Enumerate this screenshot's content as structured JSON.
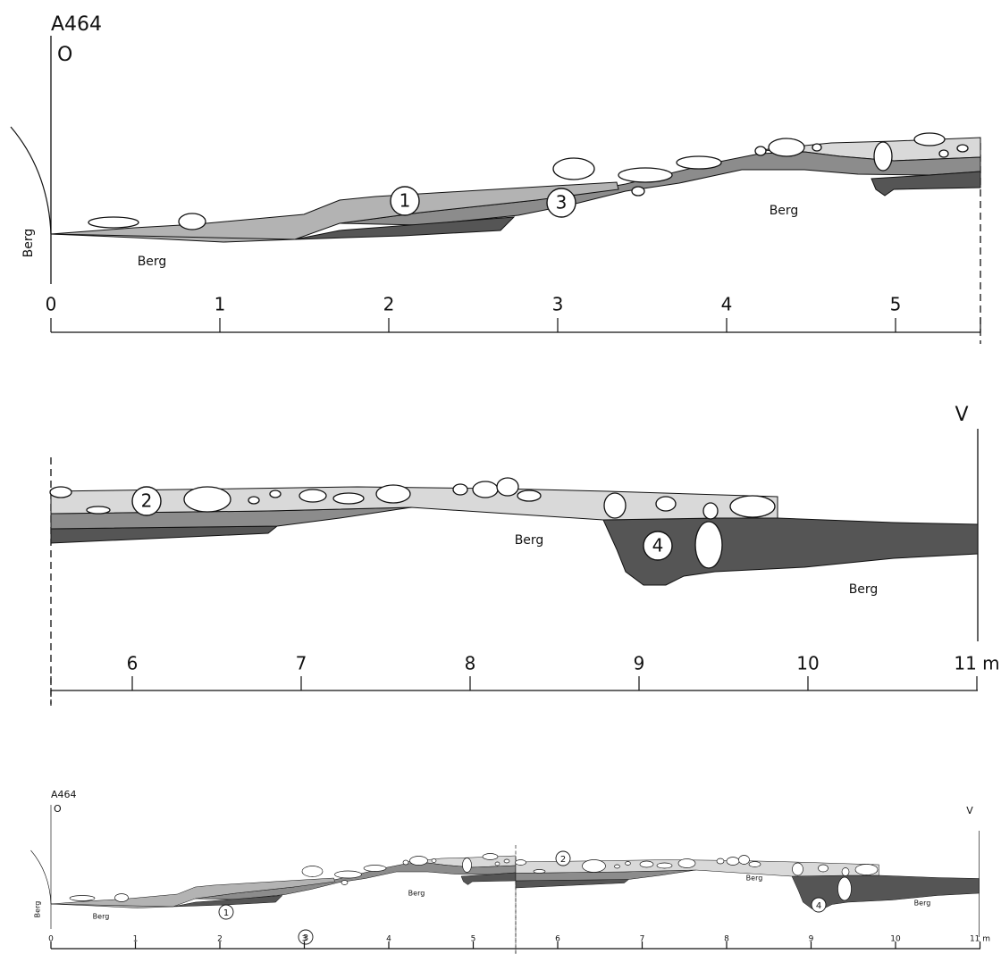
{
  "top": {
    "title": "A464",
    "west": "O",
    "side": "Berg",
    "bedrock": [
      "Berg",
      "Berg"
    ],
    "layers": [
      "1",
      "3"
    ],
    "scale": [
      "0",
      "1",
      "2",
      "3",
      "4",
      "5"
    ]
  },
  "middle": {
    "east": "V",
    "bedrock": [
      "Berg",
      "Berg"
    ],
    "layers": [
      "2",
      "4"
    ],
    "scale": [
      "6",
      "7",
      "8",
      "9",
      "10",
      "11 m"
    ]
  },
  "overview": {
    "title": "A464",
    "west": "O",
    "east": "V",
    "side": "Berg",
    "bedrock": [
      "Berg",
      "Berg",
      "Berg",
      "Berg"
    ],
    "layers": [
      "1",
      "3",
      "2",
      "4"
    ],
    "scale": [
      "0",
      "1",
      "2",
      "3",
      "4",
      "5",
      "6",
      "7",
      "8",
      "9",
      "10",
      "11 m"
    ]
  }
}
